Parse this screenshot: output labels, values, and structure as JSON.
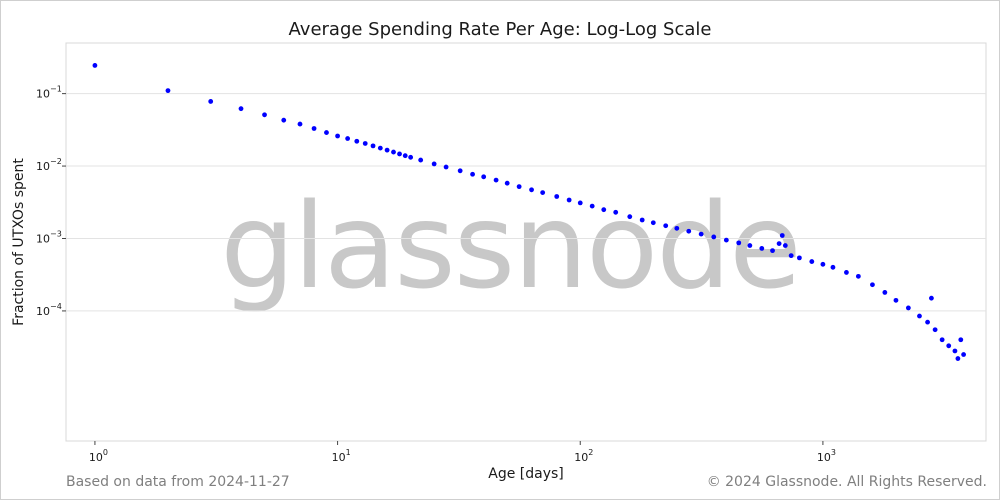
{
  "chart_data": {
    "type": "scatter",
    "title": "Average Spending Rate Per Age: Log-Log Scale",
    "xlabel": "Age [days]",
    "ylabel": "Fraction of UTXOs spent",
    "x_scale": "log",
    "y_scale": "log",
    "xlim": [
      0.76,
      4700
    ],
    "ylim": [
      1.6e-06,
      0.5
    ],
    "x_ticks": [
      {
        "value": 1,
        "base": "10",
        "exp": "0"
      },
      {
        "value": 10,
        "base": "10",
        "exp": "1"
      },
      {
        "value": 100,
        "base": "10",
        "exp": "2"
      },
      {
        "value": 1000,
        "base": "10",
        "exp": "3"
      }
    ],
    "y_ticks": [
      {
        "value": 0.1,
        "base": "10",
        "exp": "−1"
      },
      {
        "value": 0.01,
        "base": "10",
        "exp": "−2"
      },
      {
        "value": 0.001,
        "base": "10",
        "exp": "−3"
      },
      {
        "value": 0.0001,
        "base": "10",
        "exp": "−4"
      }
    ],
    "grid": "horizontal",
    "marker_color": "#0000ff",
    "series": [
      {
        "points": [
          [
            1,
            0.245
          ],
          [
            2,
            0.11
          ],
          [
            3,
            0.078
          ],
          [
            4,
            0.062
          ],
          [
            5,
            0.051
          ],
          [
            6,
            0.043
          ],
          [
            7,
            0.038
          ],
          [
            8,
            0.033
          ],
          [
            9,
            0.029
          ],
          [
            10,
            0.026
          ],
          [
            11,
            0.024
          ],
          [
            12,
            0.022
          ],
          [
            13,
            0.0205
          ],
          [
            14,
            0.019
          ],
          [
            15,
            0.0177
          ],
          [
            16,
            0.0166
          ],
          [
            17,
            0.0156
          ],
          [
            18,
            0.0147
          ],
          [
            19,
            0.0139
          ],
          [
            20,
            0.0132
          ],
          [
            22,
            0.0121
          ],
          [
            25,
            0.0107
          ],
          [
            28,
            0.0097
          ],
          [
            32,
            0.0086
          ],
          [
            36,
            0.0077
          ],
          [
            40,
            0.0071
          ],
          [
            45,
            0.0064
          ],
          [
            50,
            0.0058
          ],
          [
            56,
            0.0052
          ],
          [
            63,
            0.0047
          ],
          [
            70,
            0.0043
          ],
          [
            80,
            0.0038
          ],
          [
            90,
            0.0034
          ],
          [
            100,
            0.0031
          ],
          [
            112,
            0.0028
          ],
          [
            125,
            0.0025
          ],
          [
            140,
            0.0023
          ],
          [
            160,
            0.002
          ],
          [
            180,
            0.0018
          ],
          [
            200,
            0.00165
          ],
          [
            225,
            0.0015
          ],
          [
            250,
            0.00138
          ],
          [
            280,
            0.00126
          ],
          [
            315,
            0.00115
          ],
          [
            355,
            0.00105
          ],
          [
            400,
            0.00095
          ],
          [
            450,
            0.00087
          ],
          [
            500,
            0.0008
          ],
          [
            560,
            0.00073
          ],
          [
            620,
            0.00068
          ],
          [
            660,
            0.00085
          ],
          [
            680,
            0.0011
          ],
          [
            700,
            0.0008
          ],
          [
            740,
            0.00058
          ],
          [
            800,
            0.00054
          ],
          [
            900,
            0.00048
          ],
          [
            1000,
            0.00044
          ],
          [
            1100,
            0.0004
          ],
          [
            1250,
            0.00034
          ],
          [
            1400,
            0.0003
          ],
          [
            1600,
            0.00023
          ],
          [
            1800,
            0.00018
          ],
          [
            2000,
            0.00014
          ],
          [
            2250,
            0.00011
          ],
          [
            2500,
            8.5e-05
          ],
          [
            2700,
            7e-05
          ],
          [
            2800,
            0.00015
          ],
          [
            2900,
            5.5e-05
          ],
          [
            3100,
            4e-05
          ],
          [
            3300,
            3.3e-05
          ],
          [
            3500,
            2.8e-05
          ],
          [
            3600,
            2.2e-05
          ],
          [
            3700,
            4e-05
          ],
          [
            3800,
            2.5e-05
          ]
        ]
      }
    ]
  },
  "watermark": "glassnode",
  "footer": {
    "left": "Based on data from 2024-11-27",
    "right": "© 2024 Glassnode. All Rights Reserved."
  }
}
